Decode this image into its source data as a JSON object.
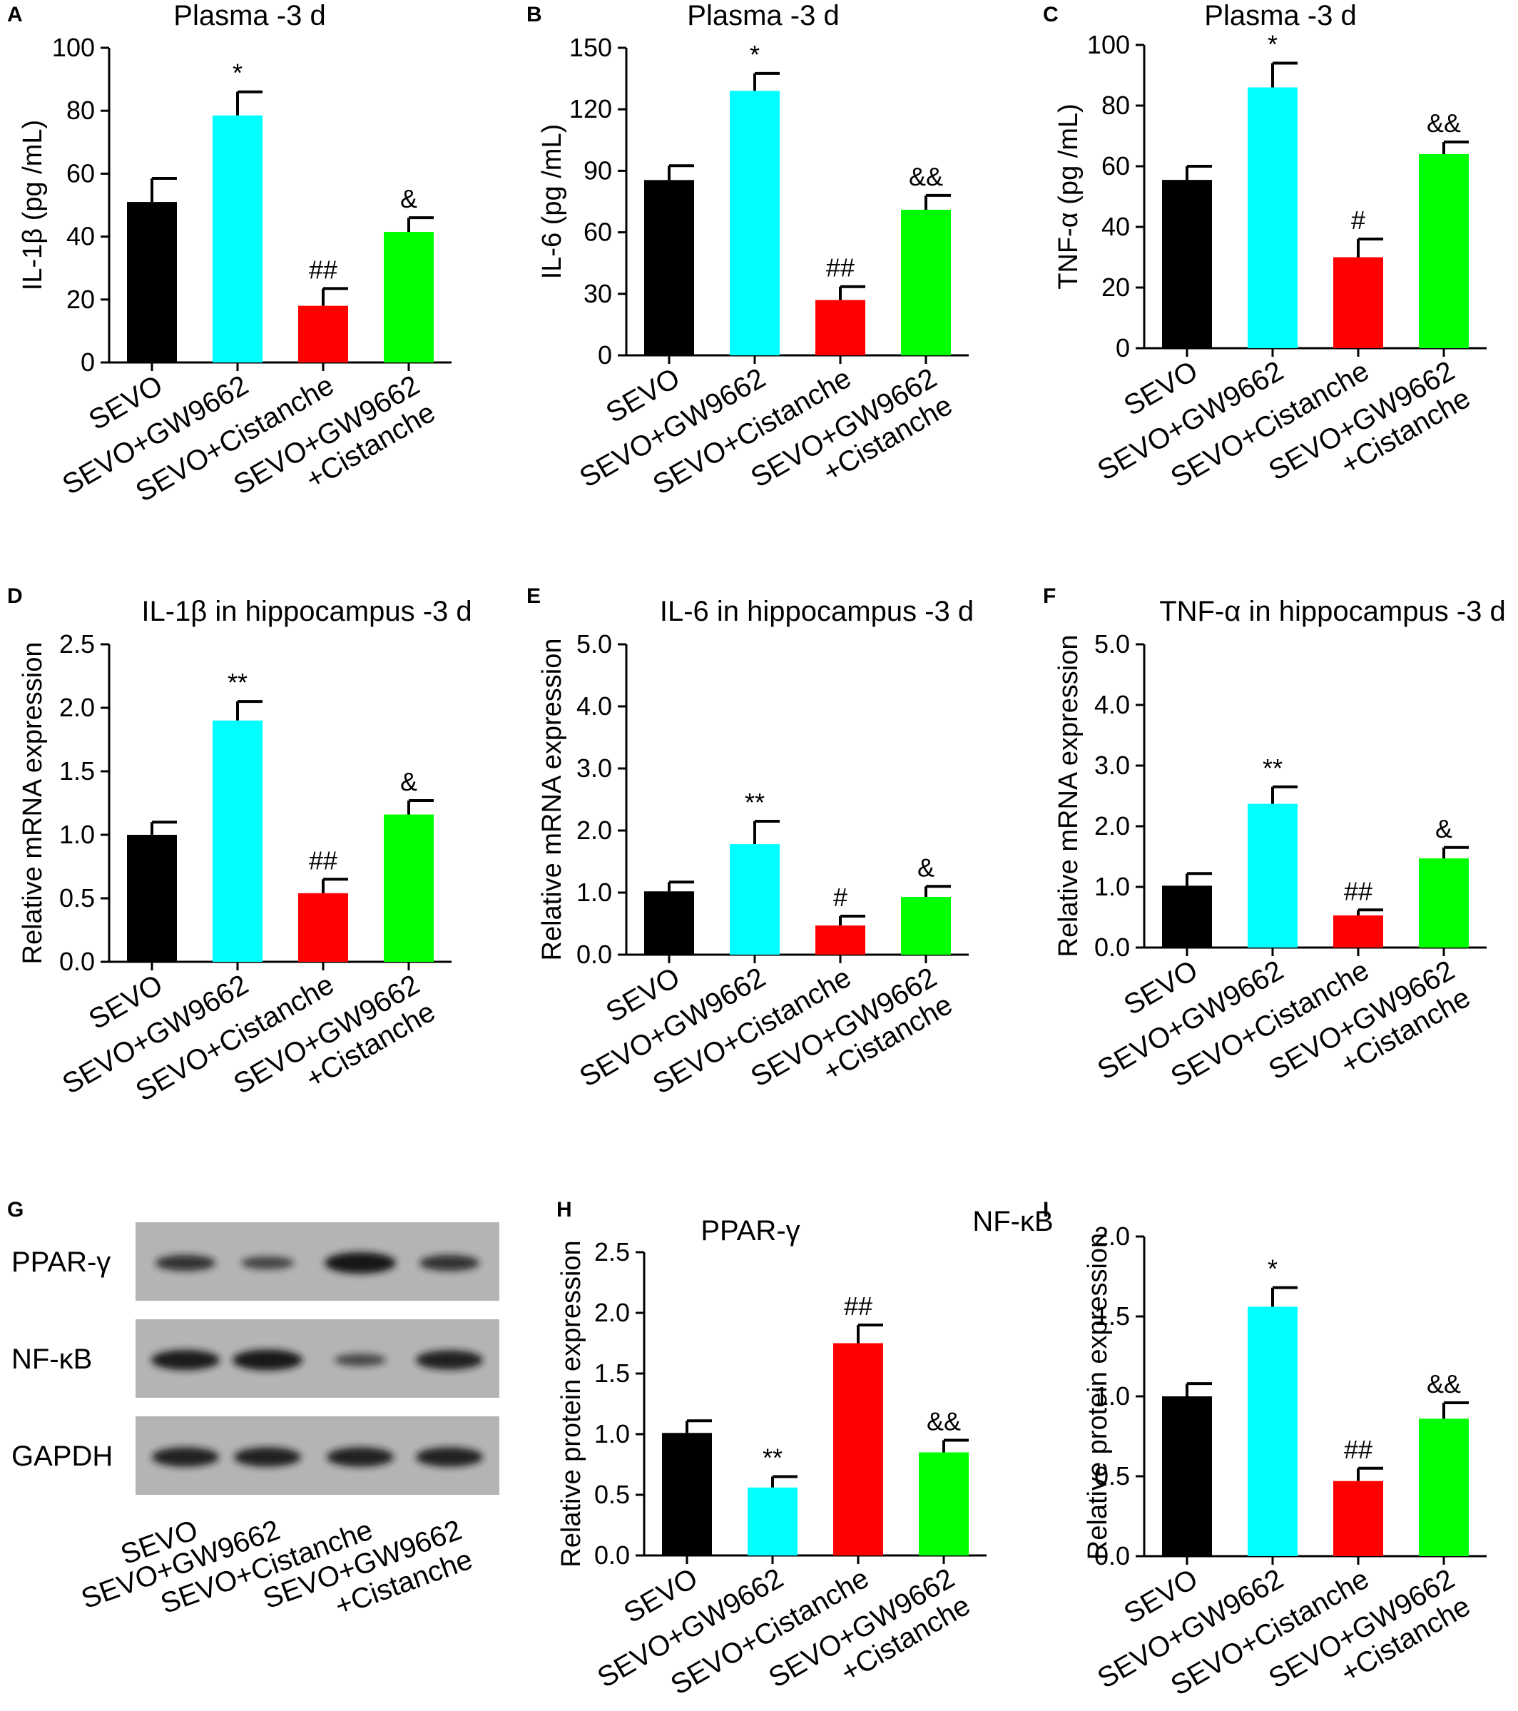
{
  "charts": [
    {
      "letter": "A",
      "type": "bar",
      "title": "Plasma -3 d",
      "ylabel": "IL-1β  (pg /mL)",
      "ylim": [
        0,
        100
      ],
      "yticks": [
        "0",
        "20",
        "40",
        "60",
        "80",
        "100"
      ],
      "categories": [
        "SEVO",
        "SEVO+GW9662",
        "SEVO+Cistanche",
        "SEVO+GW9662|+Cistanche"
      ],
      "values": [
        51,
        78.5,
        18,
        41.5
      ],
      "errors": [
        7.5,
        7.5,
        5.5,
        4.5
      ],
      "sig": [
        "",
        "*",
        "##",
        "&"
      ]
    },
    {
      "letter": "B",
      "type": "bar",
      "title": "Plasma -3 d",
      "ylabel": "IL-6 (pg /mL)",
      "ylim": [
        0,
        150
      ],
      "yticks": [
        "0",
        "30",
        "60",
        "90",
        "120",
        "150"
      ],
      "categories": [
        "SEVO",
        "SEVO+GW9662",
        "SEVO+Cistanche",
        "SEVO+GW9662|+Cistanche"
      ],
      "values": [
        85.5,
        129,
        27,
        71
      ],
      "errors": [
        7,
        8.5,
        6.5,
        7
      ],
      "sig": [
        "",
        "*",
        "##",
        "&&"
      ]
    },
    {
      "letter": "C",
      "type": "bar",
      "title": "Plasma -3 d",
      "ylabel": "TNF-α (pg /mL)",
      "ylim": [
        0,
        100
      ],
      "yticks": [
        "0",
        "20",
        "40",
        "60",
        "80",
        "100"
      ],
      "categories": [
        "SEVO",
        "SEVO+GW9662",
        "SEVO+Cistanche",
        "SEVO+GW9662|+Cistanche"
      ],
      "values": [
        55.5,
        86,
        30,
        64
      ],
      "errors": [
        4.5,
        8,
        6,
        4
      ],
      "sig": [
        "",
        "*",
        "#",
        "&&"
      ]
    },
    {
      "letter": "D",
      "type": "bar",
      "title": "IL-1β in hippocampus -3 d",
      "ylabel": "Relative mRNA expression",
      "ylim": [
        0,
        2.5
      ],
      "yticks": [
        "0.0",
        "0.5",
        "1.0",
        "1.5",
        "2.0",
        "2.5"
      ],
      "categories": [
        "SEVO",
        "SEVO+GW9662",
        "SEVO+Cistanche",
        "SEVO+GW9662|+Cistanche"
      ],
      "values": [
        1.0,
        1.9,
        0.54,
        1.16
      ],
      "errors": [
        0.1,
        0.15,
        0.11,
        0.11
      ],
      "sig": [
        "",
        "**",
        "##",
        "&"
      ]
    },
    {
      "letter": "E",
      "type": "bar",
      "title": "IL-6 in hippocampus -3 d",
      "ylabel": "Relative mRNA expression",
      "ylim": [
        0,
        5
      ],
      "yticks": [
        "0.0",
        "1.0",
        "2.0",
        "3.0",
        "4.0",
        "5.0"
      ],
      "categories": [
        "SEVO",
        "SEVO+GW9662",
        "SEVO+Cistanche",
        "SEVO+GW9662|+Cistanche"
      ],
      "values": [
        1.02,
        1.78,
        0.47,
        0.93
      ],
      "errors": [
        0.15,
        0.37,
        0.15,
        0.17
      ],
      "sig": [
        "",
        "**",
        "#",
        "&"
      ]
    },
    {
      "letter": "F",
      "type": "bar",
      "title": "TNF-α in hippocampus -3 d",
      "ylabel": "Relative mRNA expression",
      "ylim": [
        0,
        5
      ],
      "yticks": [
        "0.0",
        "1.0",
        "2.0",
        "3.0",
        "4.0",
        "5.0"
      ],
      "categories": [
        "SEVO",
        "SEVO+GW9662",
        "SEVO+Cistanche",
        "SEVO+GW9662|+Cistanche"
      ],
      "values": [
        1.02,
        2.37,
        0.53,
        1.47
      ],
      "errors": [
        0.2,
        0.28,
        0.09,
        0.18
      ],
      "sig": [
        "",
        "**",
        "##",
        "&"
      ]
    },
    {
      "letter": "H",
      "type": "bar",
      "title": "PPAR-γ",
      "ylabel": "Relative protein expression",
      "ylim": [
        0,
        2.5
      ],
      "yticks": [
        "0.0",
        "0.5",
        "1.0",
        "1.5",
        "2.0",
        "2.5"
      ],
      "categories": [
        "SEVO",
        "SEVO+GW9662",
        "SEVO+Cistanche",
        "SEVO+GW9662|+Cistanche"
      ],
      "values": [
        1.01,
        0.56,
        1.75,
        0.85
      ],
      "errors": [
        0.1,
        0.09,
        0.15,
        0.1
      ],
      "sig": [
        "",
        "**",
        "##",
        "&&"
      ]
    },
    {
      "letter": "I",
      "type": "bar",
      "title": "NF-κB",
      "ylabel": "Relative protein expression",
      "ylim": [
        0,
        2.0
      ],
      "yticks": [
        "0.0",
        "0.5",
        "1.0",
        "1.5",
        "2.0"
      ],
      "categories": [
        "SEVO",
        "SEVO+GW9662",
        "SEVO+Cistanche",
        "SEVO+GW9662|+Cistanche"
      ],
      "values": [
        1.0,
        1.56,
        0.47,
        0.86
      ],
      "errors": [
        0.08,
        0.12,
        0.08,
        0.1
      ],
      "sig": [
        "",
        "*",
        "##",
        "&&"
      ]
    }
  ],
  "colors": [
    "#000000",
    "#00ffff",
    "#ff0000",
    "#00ff00"
  ],
  "blot": {
    "letter": "G",
    "rows": [
      {
        "label": "PPAR-γ",
        "intensity": [
          0.6,
          0.35,
          1.0,
          0.6
        ]
      },
      {
        "label": "NF-κB",
        "intensity": [
          0.9,
          0.95,
          0.3,
          0.85
        ]
      },
      {
        "label": "GAPDH",
        "intensity": [
          0.85,
          0.85,
          0.85,
          0.85
        ]
      }
    ],
    "categories": [
      "SEVO",
      "SEVO+GW9662",
      "SEVO+Cistanche",
      "SEVO+GW9662|+Cistanche"
    ]
  }
}
